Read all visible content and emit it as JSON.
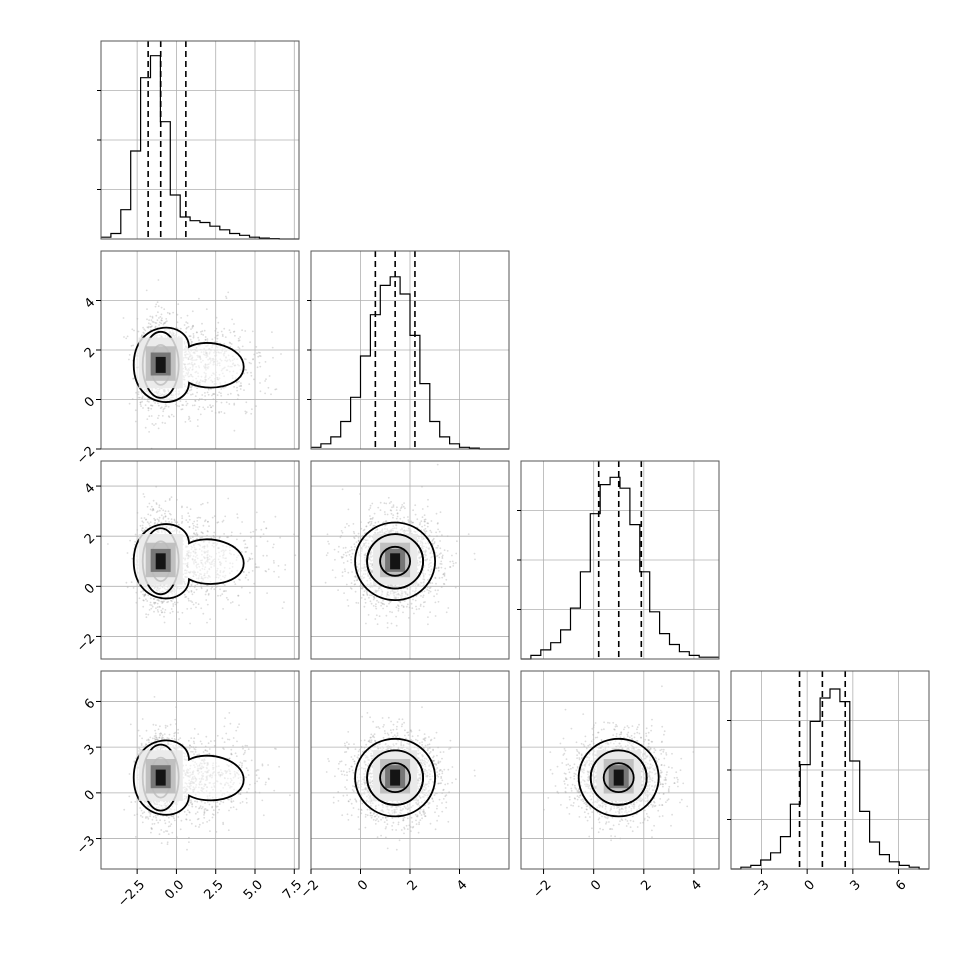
{
  "chart_data": {
    "type": "corner",
    "colors": {
      "line": "#000000",
      "grid": "#b0b0b0",
      "scatter": "#9a9a9a",
      "frame": "#555555"
    },
    "grid": true,
    "dimensions": [
      {
        "range": [
          -4.8,
          7.8
        ],
        "ticks": [
          -2.5,
          0.0,
          2.5,
          5.0,
          7.5
        ],
        "tick_labels": [
          "−2.5",
          "0.0",
          "2.5",
          "5.0",
          "7.5"
        ],
        "histogram": {
          "bin_edges": [
            -4.8,
            -4.17,
            -3.54,
            -2.91,
            -2.28,
            -1.65,
            -1.02,
            -0.39,
            0.24,
            0.87,
            1.5,
            2.13,
            2.76,
            3.39,
            4.02,
            4.65,
            5.28,
            5.91,
            6.54,
            7.17,
            7.8
          ],
          "values": [
            1,
            3,
            16,
            48,
            88,
            100,
            64,
            24,
            12,
            10,
            9,
            7,
            5,
            3,
            2,
            1,
            0.5,
            0.2,
            0,
            0
          ],
          "ymax": 108
        },
        "quantiles": [
          -1.8,
          -1.0,
          0.6
        ],
        "center": -1.0
      },
      {
        "range": [
          -2.0,
          6.0
        ],
        "ticks": [
          -2,
          0,
          2,
          4
        ],
        "tick_labels": [
          "−2",
          "0",
          "2",
          "4"
        ],
        "histogram": {
          "bin_edges": [
            -2.0,
            -1.6,
            -1.2,
            -0.8,
            -0.4,
            0.0,
            0.4,
            0.8,
            1.2,
            1.6,
            2.0,
            2.4,
            2.8,
            3.2,
            3.6,
            4.0,
            4.4,
            4.8,
            5.2,
            5.6,
            6.0
          ],
          "values": [
            1,
            3,
            7,
            16,
            30,
            54,
            78,
            95,
            100,
            90,
            66,
            38,
            16,
            7,
            3,
            1,
            0.5,
            0,
            0,
            0
          ],
          "ymax": 115
        },
        "quantiles": [
          0.6,
          1.4,
          2.2
        ],
        "center": 1.4
      },
      {
        "range": [
          -2.9,
          5.0
        ],
        "ticks": [
          -2,
          0,
          2,
          4
        ],
        "tick_labels": [
          "−2",
          "0",
          "2",
          "4"
        ],
        "histogram": {
          "bin_edges": [
            -2.9,
            -2.505,
            -2.11,
            -1.715,
            -1.32,
            -0.925,
            -0.53,
            -0.135,
            0.26,
            0.655,
            1.05,
            1.445,
            1.84,
            2.235,
            2.63,
            3.025,
            3.42,
            3.815,
            4.21,
            4.605,
            5.0
          ],
          "values": [
            0,
            2,
            5,
            9,
            16,
            28,
            48,
            80,
            96,
            100,
            94,
            74,
            48,
            26,
            14,
            8,
            4,
            2,
            1,
            1
          ],
          "ymax": 109
        },
        "quantiles": [
          0.2,
          1.0,
          1.9
        ],
        "center": 1.0
      },
      {
        "range": [
          -5.0,
          8.0
        ],
        "ticks": [
          -3,
          0,
          3,
          6
        ],
        "tick_labels": [
          "−3",
          "0",
          "3",
          "6"
        ],
        "histogram": {
          "bin_edges": [
            -5.0,
            -4.35,
            -3.7,
            -3.05,
            -2.4,
            -1.75,
            -1.1,
            -0.45,
            0.2,
            0.85,
            1.5,
            2.15,
            2.8,
            3.45,
            4.1,
            4.75,
            5.4,
            6.05,
            6.7,
            7.35,
            8.0
          ],
          "values": [
            0,
            1,
            2,
            5,
            9,
            18,
            36,
            58,
            82,
            95,
            100,
            93,
            60,
            32,
            15,
            8,
            4,
            2,
            1,
            0
          ],
          "ymax": 110
        },
        "quantiles": [
          -0.5,
          1.0,
          2.5
        ],
        "center": 1.0
      }
    ],
    "scatter_sigmas": [
      1.1,
      0.9,
      0.9,
      1.4
    ]
  }
}
